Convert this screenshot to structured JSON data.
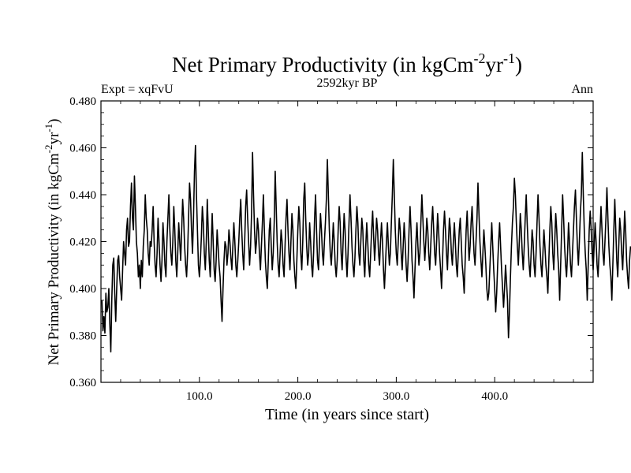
{
  "chart_data": {
    "type": "line",
    "title_main": "Net Primary Productivity (in kgCm",
    "title_sup1": "-2",
    "title_mid": "yr",
    "title_sup2": "-1",
    "title_end": ")",
    "subtitle_left": "Expt = xqFvU",
    "subtitle_center": "2592kyr BP",
    "subtitle_right": "Ann",
    "xlabel": "Time (in years since start)",
    "ylabel_main": "Net Primary Productivity (in kgCm",
    "ylabel_sup1": "-2",
    "ylabel_mid": "yr",
    "ylabel_sup2": "-1",
    "ylabel_end": ")",
    "xlim": [
      0,
      500
    ],
    "ylim": [
      0.36,
      0.48
    ],
    "x_ticks": [
      100,
      200,
      300,
      400
    ],
    "x_tick_labels": [
      "100.0",
      "200.0",
      "300.0",
      "400.0"
    ],
    "y_ticks": [
      0.36,
      0.38,
      0.4,
      0.42,
      0.44,
      0.46,
      0.48
    ],
    "y_tick_labels": [
      "0.360",
      "0.380",
      "0.400",
      "0.420",
      "0.440",
      "0.460",
      "0.480"
    ],
    "series": [
      {
        "name": "NPP",
        "x_start": 1,
        "x_step": 1,
        "values": [
          0.395,
          0.382,
          0.388,
          0.381,
          0.398,
          0.39,
          0.392,
          0.4,
          0.385,
          0.373,
          0.395,
          0.41,
          0.413,
          0.398,
          0.386,
          0.4,
          0.412,
          0.414,
          0.405,
          0.4,
          0.395,
          0.408,
          0.42,
          0.415,
          0.41,
          0.425,
          0.43,
          0.418,
          0.42,
          0.435,
          0.445,
          0.43,
          0.425,
          0.448,
          0.435,
          0.42,
          0.415,
          0.405,
          0.41,
          0.4,
          0.412,
          0.405,
          0.418,
          0.425,
          0.44,
          0.43,
          0.425,
          0.415,
          0.41,
          0.42,
          0.418,
          0.425,
          0.435,
          0.42,
          0.41,
          0.405,
          0.415,
          0.43,
          0.42,
          0.41,
          0.403,
          0.412,
          0.428,
          0.42,
          0.41,
          0.405,
          0.42,
          0.43,
          0.44,
          0.425,
          0.415,
          0.41,
          0.42,
          0.435,
          0.425,
          0.412,
          0.405,
          0.415,
          0.428,
          0.42,
          0.412,
          0.425,
          0.438,
          0.43,
          0.418,
          0.41,
          0.405,
          0.415,
          0.43,
          0.445,
          0.438,
          0.425,
          0.415,
          0.43,
          0.45,
          0.461,
          0.44,
          0.425,
          0.41,
          0.405,
          0.412,
          0.422,
          0.435,
          0.428,
          0.415,
          0.408,
          0.42,
          0.438,
          0.425,
          0.412,
          0.405,
          0.418,
          0.432,
          0.42,
          0.408,
          0.403,
          0.412,
          0.425,
          0.418,
          0.41,
          0.405,
          0.395,
          0.386,
          0.4,
          0.412,
          0.42,
          0.418,
          0.41,
          0.415,
          0.425,
          0.42,
          0.413,
          0.408,
          0.418,
          0.428,
          0.42,
          0.41,
          0.405,
          0.412,
          0.42,
          0.43,
          0.438,
          0.425,
          0.415,
          0.408,
          0.42,
          0.435,
          0.442,
          0.43,
          0.42,
          0.41,
          0.418,
          0.432,
          0.458,
          0.44,
          0.425,
          0.415,
          0.42,
          0.43,
          0.425,
          0.415,
          0.408,
          0.418,
          0.428,
          0.44,
          0.425,
          0.412,
          0.405,
          0.4,
          0.412,
          0.425,
          0.43,
          0.418,
          0.408,
          0.415,
          0.428,
          0.45,
          0.435,
          0.42,
          0.41,
          0.405,
          0.415,
          0.425,
          0.42,
          0.41,
          0.405,
          0.418,
          0.43,
          0.438,
          0.425,
          0.415,
          0.408,
          0.42,
          0.432,
          0.425,
          0.412,
          0.405,
          0.4,
          0.412,
          0.425,
          0.435,
          0.428,
          0.415,
          0.408,
          0.42,
          0.438,
          0.445,
          0.43,
          0.418,
          0.41,
          0.415,
          0.428,
          0.42,
          0.41,
          0.405,
          0.415,
          0.43,
          0.44,
          0.425,
          0.412,
          0.408,
          0.42,
          0.432,
          0.425,
          0.415,
          0.41,
          0.42,
          0.428,
          0.438,
          0.455,
          0.44,
          0.425,
          0.415,
          0.41,
          0.418,
          0.428,
          0.42,
          0.41,
          0.405,
          0.412,
          0.425,
          0.435,
          0.428,
          0.415,
          0.408,
          0.42,
          0.432,
          0.425,
          0.413,
          0.405,
          0.415,
          0.428,
          0.44,
          0.43,
          0.418,
          0.41,
          0.405,
          0.413,
          0.425,
          0.435,
          0.428,
          0.415,
          0.41,
          0.42,
          0.43,
          0.425,
          0.412,
          0.405,
          0.418,
          0.428,
          0.42,
          0.41,
          0.405,
          0.415,
          0.425,
          0.433,
          0.422,
          0.412,
          0.42,
          0.43,
          0.425,
          0.415,
          0.41,
          0.42,
          0.428,
          0.42,
          0.408,
          0.4,
          0.41,
          0.42,
          0.428,
          0.418,
          0.41,
          0.415,
          0.428,
          0.44,
          0.455,
          0.44,
          0.425,
          0.415,
          0.41,
          0.42,
          0.43,
          0.425,
          0.415,
          0.408,
          0.418,
          0.428,
          0.42,
          0.41,
          0.403,
          0.412,
          0.425,
          0.435,
          0.425,
          0.412,
          0.405,
          0.396,
          0.408,
          0.42,
          0.428,
          0.418,
          0.41,
          0.415,
          0.428,
          0.44,
          0.43,
          0.42,
          0.412,
          0.42,
          0.43,
          0.425,
          0.415,
          0.408,
          0.418,
          0.428,
          0.435,
          0.425,
          0.415,
          0.41,
          0.42,
          0.432,
          0.425,
          0.415,
          0.408,
          0.4,
          0.412,
          0.425,
          0.433,
          0.425,
          0.415,
          0.408,
          0.42,
          0.43,
          0.425,
          0.415,
          0.41,
          0.42,
          0.428,
          0.42,
          0.41,
          0.405,
          0.415,
          0.425,
          0.43,
          0.42,
          0.41,
          0.405,
          0.398,
          0.412,
          0.425,
          0.433,
          0.422,
          0.412,
          0.418,
          0.428,
          0.435,
          0.425,
          0.415,
          0.41,
          0.42,
          0.43,
          0.445,
          0.432,
          0.42,
          0.412,
          0.405,
          0.415,
          0.425,
          0.418,
          0.41,
          0.4,
          0.395,
          0.398,
          0.408,
          0.418,
          0.428,
          0.418,
          0.408,
          0.4,
          0.39,
          0.398,
          0.41,
          0.42,
          0.428,
          0.418,
          0.408,
          0.4,
          0.392,
          0.4,
          0.41,
          0.403,
          0.395,
          0.379,
          0.39,
          0.405,
          0.418,
          0.428,
          0.435,
          0.447,
          0.44,
          0.428,
          0.418,
          0.41,
          0.42,
          0.432,
          0.425,
          0.415,
          0.408,
          0.418,
          0.43,
          0.44,
          0.428,
          0.418,
          0.41,
          0.405,
          0.415,
          0.425,
          0.42,
          0.41,
          0.405,
          0.415,
          0.428,
          0.44,
          0.43,
          0.418,
          0.41,
          0.405,
          0.415,
          0.425,
          0.418,
          0.41,
          0.405,
          0.398,
          0.412,
          0.425,
          0.435,
          0.428,
          0.415,
          0.408,
          0.42,
          0.432,
          0.425,
          0.415,
          0.408,
          0.395,
          0.41,
          0.425,
          0.44,
          0.43,
          0.418,
          0.41,
          0.405,
          0.415,
          0.428,
          0.42,
          0.41,
          0.405,
          0.415,
          0.425,
          0.435,
          0.442,
          0.43,
          0.418,
          0.41,
          0.42,
          0.432,
          0.44,
          0.458,
          0.44,
          0.425,
          0.415,
          0.408,
          0.395,
          0.41,
          0.425,
          0.433,
          0.425,
          0.415,
          0.408,
          0.418,
          0.428,
          0.42,
          0.41,
          0.405,
          0.415,
          0.425,
          0.435,
          0.425,
          0.415,
          0.41,
          0.42,
          0.43,
          0.443,
          0.43,
          0.418,
          0.41,
          0.405,
          0.395,
          0.41,
          0.425,
          0.438,
          0.425,
          0.412,
          0.405,
          0.418,
          0.43,
          0.425,
          0.415,
          0.408,
          0.42,
          0.433,
          0.425,
          0.412,
          0.405,
          0.4,
          0.412,
          0.418
        ]
      }
    ]
  }
}
